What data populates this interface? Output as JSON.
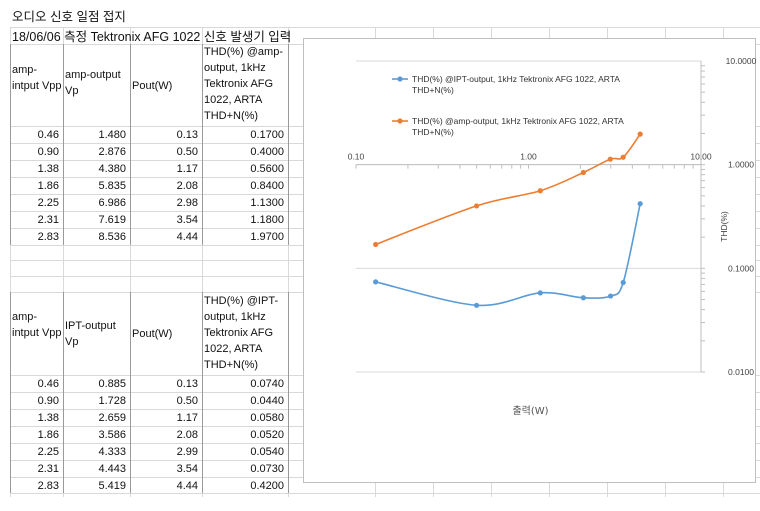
{
  "sheet": {
    "title": "오디오 신호 일점 접지",
    "subtitle": "18/06/06  측정  Tektronix AFG 1022  신호 발생기 입력"
  },
  "table1": {
    "headers": [
      "amp-intput Vpp",
      "amp-output Vp",
      "Pout(W)",
      "THD(%) @amp-output, 1kHz Tektronix AFG 1022,    ARTA THD+N(%)"
    ],
    "rows": [
      [
        "0.46",
        "1.480",
        "0.13",
        "0.1700"
      ],
      [
        "0.90",
        "2.876",
        "0.50",
        "0.4000"
      ],
      [
        "1.38",
        "4.380",
        "1.17",
        "0.5600"
      ],
      [
        "1.86",
        "5.835",
        "2.08",
        "0.8400"
      ],
      [
        "2.25",
        "6.986",
        "2.98",
        "1.1300"
      ],
      [
        "2.31",
        "7.619",
        "3.54",
        "1.1800"
      ],
      [
        "2.83",
        "8.536",
        "4.44",
        "1.9700"
      ]
    ]
  },
  "table2": {
    "headers": [
      "amp-intput Vpp",
      " IPT-output Vp",
      "Pout(W)",
      "THD(%) @IPT-output, 1kHz Tektronix AFG 1022,    ARTA THD+N(%)"
    ],
    "rows": [
      [
        "0.46",
        "0.885",
        "0.13",
        "0.0740"
      ],
      [
        "0.90",
        "1.728",
        "0.50",
        "0.0440"
      ],
      [
        "1.38",
        "2.659",
        "1.17",
        "0.0580"
      ],
      [
        "1.86",
        "3.586",
        "2.08",
        "0.0520"
      ],
      [
        "2.25",
        "4.333",
        "2.99",
        "0.0540"
      ],
      [
        "2.31",
        "4.443",
        "3.54",
        "0.0730"
      ],
      [
        "2.83",
        "5.419",
        "4.44",
        "0.4200"
      ]
    ]
  },
  "chart_data": {
    "type": "scatter",
    "style": "smooth lines with markers",
    "title": "",
    "xlabel": "출력(W)",
    "ylabel": "THD(%)",
    "xscale": "log",
    "yscale": "log",
    "xlim": [
      0.1,
      10
    ],
    "ylim": [
      0.01,
      10
    ],
    "x_axis_position": "crosses at y = 1.0",
    "y_axis_position": "right",
    "x_ticks": [
      "0.10",
      "1.00",
      "10.00"
    ],
    "y_ticks": [
      "0.0100",
      "0.1000",
      "1.0000",
      "10.0000"
    ],
    "grid": "horizontal major gridlines",
    "legend_position": "top-left inside plot",
    "series": [
      {
        "name": "THD(%) @IPT-output, 1kHz  Tektronix AFG 1022,    ARTA THD+N(%)",
        "color": "#5b9bd5",
        "x": [
          0.13,
          0.5,
          1.17,
          2.08,
          2.99,
          3.54,
          4.44
        ],
        "y": [
          0.074,
          0.044,
          0.058,
          0.052,
          0.054,
          0.073,
          0.42
        ]
      },
      {
        "name": "THD(%) @amp-output, 1kHz  Tektronix AFG 1022,    ARTA THD+N(%)",
        "color": "#ed7d31",
        "x": [
          0.13,
          0.5,
          1.17,
          2.08,
          2.98,
          3.54,
          4.44
        ],
        "y": [
          0.17,
          0.4,
          0.56,
          0.84,
          1.13,
          1.18,
          1.97
        ]
      }
    ]
  }
}
